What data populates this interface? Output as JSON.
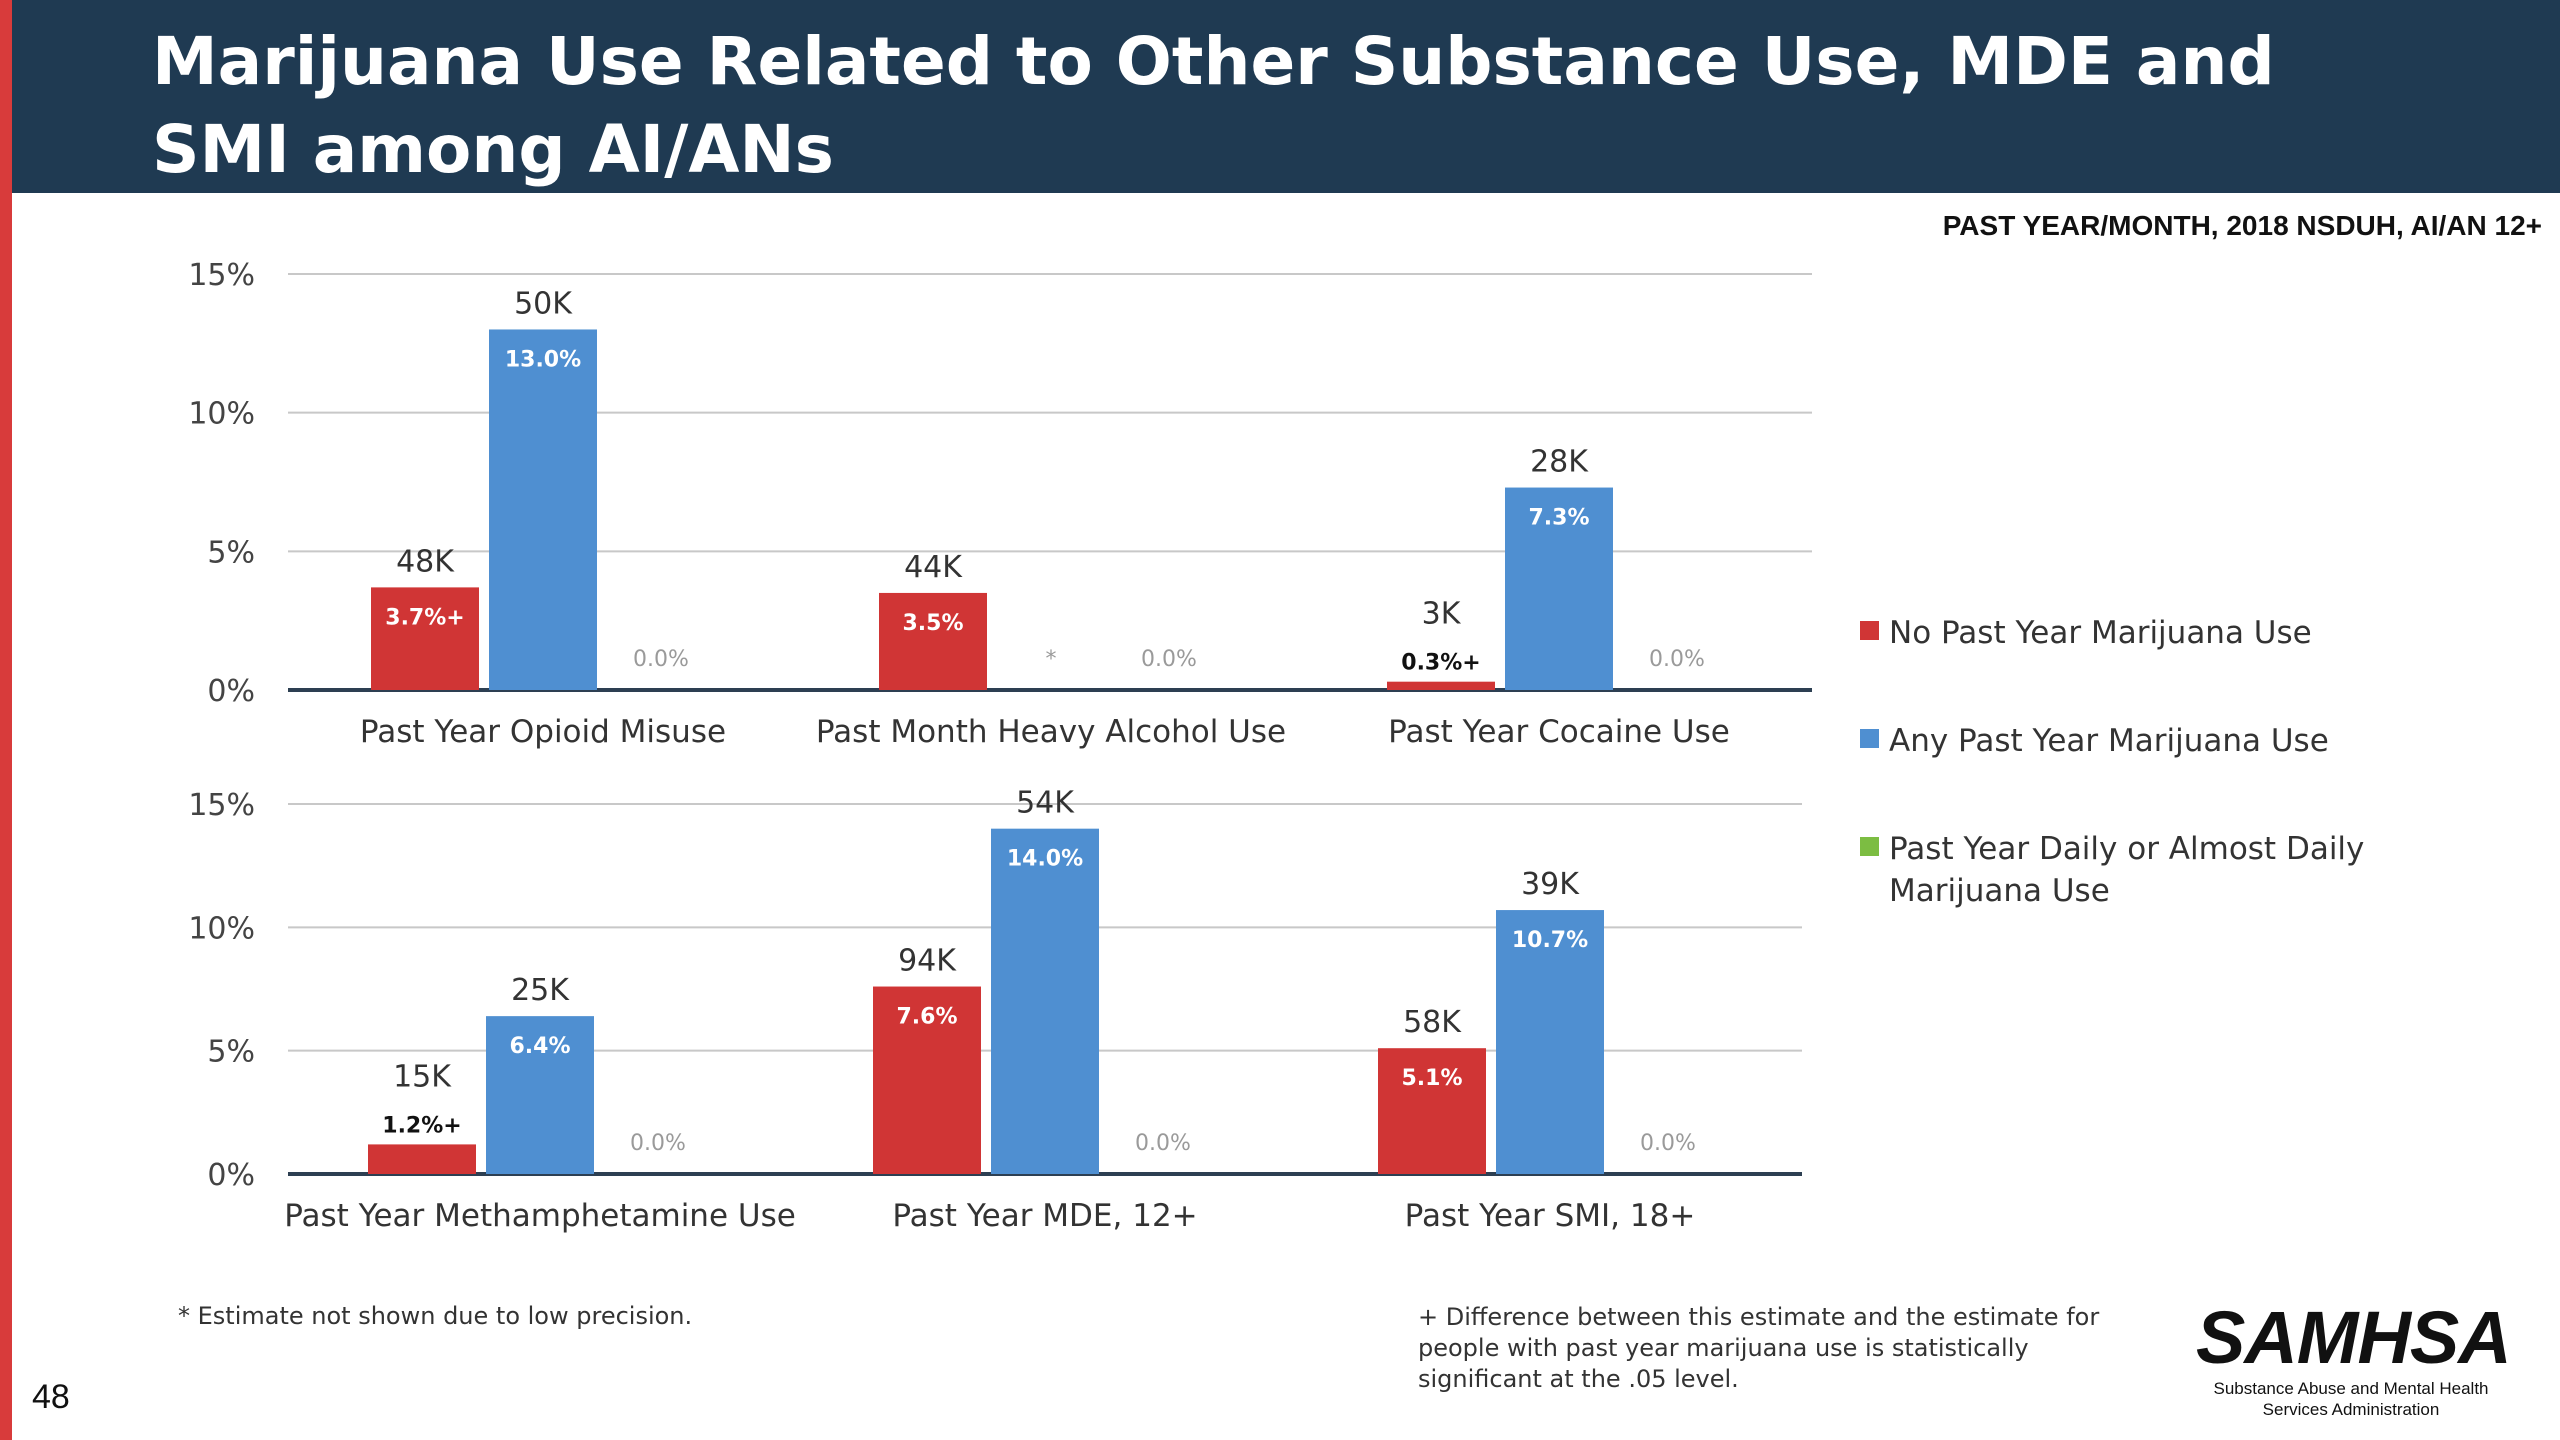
{
  "page": {
    "title": "Marijuana Use Related to Other Substance Use, MDE and SMI among AI/ANs",
    "subtitle": "PAST YEAR/MONTH, 2018 NSDUH, AI/AN 12+",
    "page_number": "48"
  },
  "footnotes": {
    "left": "* Estimate not shown due to low precision.",
    "right": "+ Difference between this estimate and the estimate for people with past year marijuana use is statistically significant at the .05 level."
  },
  "logo": {
    "name": "SAMHSA",
    "subtitle": "Substance Abuse and Mental Health Services Administration"
  },
  "legend": [
    {
      "label": "No Past Year Marijuana Use",
      "color": "#d03535"
    },
    {
      "label": "Any Past Year Marijuana Use",
      "color": "#4f8fd1"
    },
    {
      "label": "Past Year Daily or Almost Daily Marijuana Use",
      "color": "#7cbd42"
    }
  ],
  "chart_data": [
    {
      "type": "bar",
      "ylim": [
        0,
        15
      ],
      "yticks": [
        "0%",
        "5%",
        "10%",
        "15%"
      ],
      "grid": true,
      "legend_position": "right",
      "categories": [
        "Past Year Opioid Misuse",
        "Past Month Heavy Alcohol Use",
        "Past Year Cocaine Use"
      ],
      "series": [
        {
          "name": "No Past Year Marijuana Use",
          "values": [
            3.7,
            3.5,
            0.3
          ],
          "labels": [
            "3.7%+",
            "3.5%",
            "0.3%+"
          ],
          "counts": [
            "48K",
            "44K",
            "3K"
          ]
        },
        {
          "name": "Any Past Year Marijuana Use",
          "values": [
            13.0,
            null,
            7.3
          ],
          "labels": [
            "13.0%",
            "*",
            "7.3%"
          ],
          "counts": [
            "50K",
            "",
            "28K"
          ]
        },
        {
          "name": "Past Year Daily or Almost Daily Marijuana Use",
          "values": [
            null,
            null,
            null
          ],
          "labels": [
            "0.0%",
            "0.0%",
            "0.0%"
          ],
          "counts": [
            "",
            "",
            ""
          ]
        }
      ]
    },
    {
      "type": "bar",
      "ylim": [
        0,
        15
      ],
      "yticks": [
        "0%",
        "5%",
        "10%",
        "15%"
      ],
      "grid": true,
      "legend_position": "right",
      "categories": [
        "Past Year Methamphetamine Use",
        "Past Year MDE, 12+",
        "Past Year SMI, 18+"
      ],
      "series": [
        {
          "name": "No Past Year Marijuana Use",
          "values": [
            1.2,
            7.6,
            5.1
          ],
          "labels": [
            "1.2%+",
            "7.6%",
            "5.1%"
          ],
          "counts": [
            "15K",
            "94K",
            "58K"
          ]
        },
        {
          "name": "Any Past Year Marijuana Use",
          "values": [
            6.4,
            14.0,
            10.7
          ],
          "labels": [
            "6.4%",
            "14.0%",
            "10.7%"
          ],
          "counts": [
            "25K",
            "54K",
            "39K"
          ]
        },
        {
          "name": "Past Year Daily or Almost Daily Marijuana Use",
          "values": [
            null,
            null,
            null
          ],
          "labels": [
            "0.0%",
            "0.0%",
            "0.0%"
          ],
          "counts": [
            "",
            "",
            ""
          ]
        }
      ]
    }
  ]
}
